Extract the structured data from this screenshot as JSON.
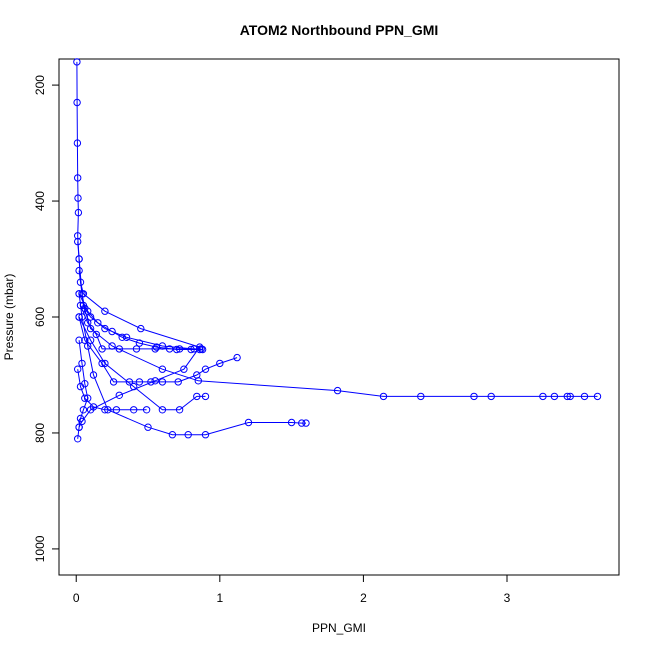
{
  "chart_data": {
    "type": "line",
    "title": "ATOM2 Northbound PPN_GMI",
    "xlabel": "PPN_GMI",
    "ylabel": "Pressure (mbar)",
    "xlim": [
      -0.12,
      3.78
    ],
    "ylim": [
      1045,
      155
    ],
    "y_reversed": true,
    "xticks": [
      0,
      1,
      2,
      3
    ],
    "yticks": [
      200,
      400,
      600,
      800,
      1000
    ],
    "grid": false,
    "series_color": "#0000ff",
    "marker": "open-circle",
    "series": [
      {
        "x": [
          0.005,
          0.006,
          0.008,
          0.01,
          0.012,
          0.015,
          0.01,
          0.02,
          0.03,
          0.05,
          0.2,
          0.45,
          0.86,
          0.75,
          0.55,
          0.3,
          0.1,
          0.04,
          0.02,
          0.01
        ],
        "y": [
          160,
          230,
          300,
          360,
          395,
          420,
          460,
          500,
          540,
          560,
          590,
          620,
          652,
          690,
          710,
          735,
          760,
          780,
          790,
          810
        ]
      },
      {
        "x": [
          0.01,
          0.02,
          0.04,
          0.06,
          0.1,
          0.2,
          0.35,
          0.6,
          0.86
        ],
        "y": [
          470,
          500,
          560,
          585,
          600,
          620,
          635,
          650,
          656
        ]
      },
      {
        "x": [
          0.02,
          0.05,
          0.1,
          0.25,
          0.6,
          0.85,
          1.82,
          2.14,
          2.4,
          2.77,
          2.89,
          3.25,
          3.33,
          3.42,
          3.44,
          3.54,
          3.63
        ],
        "y": [
          520,
          580,
          620,
          650,
          690,
          710,
          727,
          737,
          737,
          737,
          737,
          737,
          737,
          737,
          737,
          737,
          737
        ]
      },
      {
        "x": [
          0.02,
          0.04,
          0.08,
          0.12,
          0.22,
          0.5,
          0.67,
          0.78,
          0.9,
          1.2,
          1.5,
          1.57,
          1.6
        ],
        "y": [
          560,
          600,
          650,
          700,
          760,
          790,
          803,
          803,
          803,
          782,
          782,
          783,
          783
        ]
      },
      {
        "x": [
          0.02,
          0.06,
          0.18,
          0.26,
          0.37,
          0.44,
          0.52,
          0.6,
          0.71,
          0.84,
          0.9,
          1.0,
          1.12
        ],
        "y": [
          600,
          640,
          680,
          712,
          712,
          712,
          712,
          712,
          712,
          700,
          690,
          680,
          670
        ]
      },
      {
        "x": [
          0.03,
          0.08,
          0.14,
          0.18,
          0.3,
          0.42,
          0.55,
          0.65,
          0.72,
          0.82,
          0.87
        ],
        "y": [
          580,
          610,
          630,
          655,
          655,
          655,
          655,
          655,
          655,
          655,
          655
        ]
      },
      {
        "x": [
          0.02,
          0.04,
          0.06,
          0.08,
          0.05,
          0.03,
          0.02
        ],
        "y": [
          640,
          680,
          715,
          740,
          760,
          775,
          790
        ]
      },
      {
        "x": [
          0.02,
          0.1,
          0.2,
          0.4,
          0.6,
          0.72,
          0.84,
          0.9
        ],
        "y": [
          600,
          640,
          680,
          720,
          760,
          760,
          737,
          737
        ]
      },
      {
        "x": [
          0.01,
          0.03,
          0.06,
          0.12,
          0.2,
          0.28,
          0.4,
          0.49
        ],
        "y": [
          690,
          720,
          740,
          755,
          760,
          760,
          760,
          760
        ]
      },
      {
        "x": [
          0.02,
          0.08,
          0.15,
          0.25,
          0.32,
          0.44,
          0.56,
          0.7,
          0.8,
          0.88
        ],
        "y": [
          560,
          590,
          610,
          625,
          635,
          645,
          652,
          656,
          656,
          656
        ]
      }
    ]
  }
}
